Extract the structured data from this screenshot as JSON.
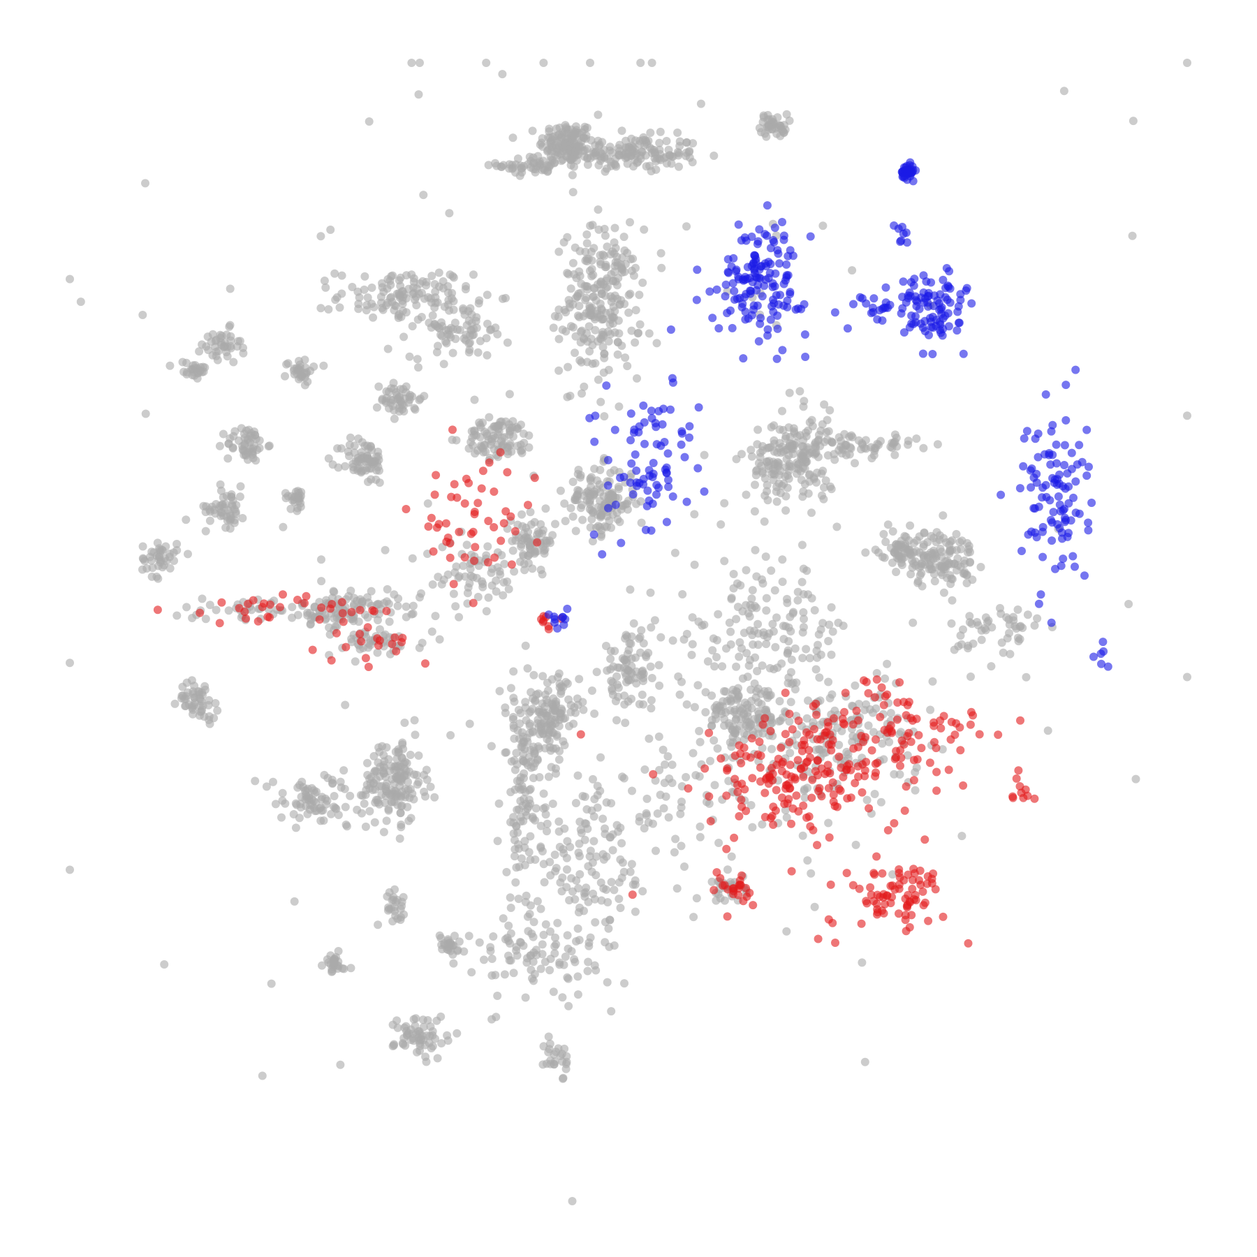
{
  "chart_data": {
    "type": "scatter",
    "title": "",
    "xlabel": "",
    "ylabel": "",
    "axes_visible": false,
    "grid": false,
    "legend": "none",
    "xlim": [
      0,
      100
    ],
    "ylim": [
      0,
      100
    ],
    "colors": {
      "background": "#gray",
      "gray": "#aaaaaa",
      "red": "#e31a1c",
      "blue": "#1a1ae6"
    },
    "point_opacity": 0.6,
    "clusters": [
      {
        "color": "gray",
        "n": 120,
        "x": 44.5,
        "y": 93.0,
        "sx": 1.2,
        "sy": 0.9
      },
      {
        "color": "gray",
        "n": 150,
        "x": 50.0,
        "y": 92.0,
        "sx": 3.2,
        "sy": 0.8
      },
      {
        "color": "gray",
        "n": 50,
        "x": 41.5,
        "y": 91.0,
        "sx": 1.6,
        "sy": 0.4
      },
      {
        "color": "gray",
        "n": 40,
        "x": 63.0,
        "y": 94.5,
        "sx": 0.6,
        "sy": 0.5
      },
      {
        "color": "gray",
        "n": 230,
        "x": 47.5,
        "y": 79.0,
        "sx": 1.8,
        "sy": 3.2
      },
      {
        "color": "gray",
        "n": 120,
        "x": 30.0,
        "y": 79.5,
        "sx": 3.0,
        "sy": 1.2
      },
      {
        "color": "gray",
        "n": 70,
        "x": 35.0,
        "y": 76.5,
        "sx": 2.2,
        "sy": 1.2
      },
      {
        "color": "gray",
        "n": 40,
        "x": 13.5,
        "y": 75.0,
        "sx": 0.9,
        "sy": 0.8
      },
      {
        "color": "gray",
        "n": 25,
        "x": 11.0,
        "y": 73.0,
        "sx": 0.8,
        "sy": 0.4
      },
      {
        "color": "gray",
        "n": 30,
        "x": 20.5,
        "y": 73.0,
        "sx": 0.6,
        "sy": 0.5
      },
      {
        "color": "gray",
        "n": 50,
        "x": 29.7,
        "y": 70.5,
        "sx": 0.9,
        "sy": 0.8
      },
      {
        "color": "gray",
        "n": 50,
        "x": 15.8,
        "y": 66.5,
        "sx": 0.9,
        "sy": 0.8
      },
      {
        "color": "gray",
        "n": 70,
        "x": 26.3,
        "y": 65.0,
        "sx": 1.0,
        "sy": 1.0
      },
      {
        "color": "gray",
        "n": 90,
        "x": 38.5,
        "y": 67.0,
        "sx": 1.6,
        "sy": 0.9
      },
      {
        "color": "gray",
        "n": 50,
        "x": 14.0,
        "y": 61.0,
        "sx": 0.9,
        "sy": 0.9
      },
      {
        "color": "gray",
        "n": 25,
        "x": 20.2,
        "y": 61.8,
        "sx": 0.5,
        "sy": 0.5
      },
      {
        "color": "gray",
        "n": 40,
        "x": 8.0,
        "y": 56.5,
        "sx": 0.8,
        "sy": 0.8
      },
      {
        "color": "gray",
        "n": 70,
        "x": 41.5,
        "y": 58.0,
        "sx": 1.0,
        "sy": 1.1
      },
      {
        "color": "gray",
        "n": 130,
        "x": 47.5,
        "y": 61.5,
        "sx": 1.6,
        "sy": 1.5
      },
      {
        "color": "gray",
        "n": 170,
        "x": 64.5,
        "y": 65.0,
        "sx": 2.0,
        "sy": 2.0
      },
      {
        "color": "gray",
        "n": 70,
        "x": 70.0,
        "y": 66.5,
        "sx": 3.0,
        "sy": 0.5
      },
      {
        "color": "gray",
        "n": 60,
        "x": 74.5,
        "y": 57.2,
        "sx": 1.1,
        "sy": 0.9
      },
      {
        "color": "gray",
        "n": 110,
        "x": 78.0,
        "y": 56.5,
        "sx": 1.6,
        "sy": 1.3
      },
      {
        "color": "gray",
        "n": 50,
        "x": 83.0,
        "y": 50.0,
        "sx": 2.0,
        "sy": 1.5
      },
      {
        "color": "gray",
        "n": 100,
        "x": 25.0,
        "y": 52.0,
        "sx": 2.2,
        "sy": 0.9
      },
      {
        "color": "gray",
        "n": 40,
        "x": 17.0,
        "y": 52.0,
        "sx": 4.0,
        "sy": 0.5
      },
      {
        "color": "gray",
        "n": 40,
        "x": 27.0,
        "y": 49.0,
        "sx": 2.2,
        "sy": 0.6
      },
      {
        "color": "gray",
        "n": 60,
        "x": 36.0,
        "y": 55.0,
        "sx": 2.2,
        "sy": 1.6
      },
      {
        "color": "gray",
        "n": 50,
        "x": 11.5,
        "y": 44.0,
        "sx": 0.9,
        "sy": 0.8
      },
      {
        "color": "gray",
        "n": 150,
        "x": 29.0,
        "y": 37.0,
        "sx": 1.4,
        "sy": 1.8
      },
      {
        "color": "gray",
        "n": 80,
        "x": 22.0,
        "y": 35.0,
        "sx": 2.5,
        "sy": 1.2
      },
      {
        "color": "gray",
        "n": 130,
        "x": 43.0,
        "y": 42.5,
        "sx": 1.3,
        "sy": 1.8
      },
      {
        "color": "gray",
        "n": 120,
        "x": 40.5,
        "y": 36.0,
        "sx": 1.0,
        "sy": 5.0
      },
      {
        "color": "gray",
        "n": 130,
        "x": 47.0,
        "y": 30.0,
        "sx": 3.0,
        "sy": 3.5
      },
      {
        "color": "gray",
        "n": 80,
        "x": 50.0,
        "y": 46.5,
        "sx": 1.3,
        "sy": 1.6
      },
      {
        "color": "gray",
        "n": 120,
        "x": 60.0,
        "y": 42.5,
        "sx": 1.8,
        "sy": 1.2
      },
      {
        "color": "gray",
        "n": 150,
        "x": 62.0,
        "y": 50.0,
        "sx": 4.0,
        "sy": 3.0
      },
      {
        "color": "gray",
        "n": 150,
        "x": 69.0,
        "y": 41.0,
        "sx": 3.5,
        "sy": 2.5
      },
      {
        "color": "gray",
        "n": 90,
        "x": 58.0,
        "y": 36.0,
        "sx": 6.0,
        "sy": 3.5
      },
      {
        "color": "gray",
        "n": 25,
        "x": 29.0,
        "y": 26.0,
        "sx": 0.6,
        "sy": 0.7
      },
      {
        "color": "gray",
        "n": 25,
        "x": 23.5,
        "y": 21.0,
        "sx": 0.5,
        "sy": 0.5
      },
      {
        "color": "gray",
        "n": 25,
        "x": 34.0,
        "y": 22.5,
        "sx": 0.5,
        "sy": 0.5
      },
      {
        "color": "gray",
        "n": 60,
        "x": 31.5,
        "y": 14.5,
        "sx": 1.2,
        "sy": 1.0
      },
      {
        "color": "gray",
        "n": 90,
        "x": 42.0,
        "y": 21.5,
        "sx": 3.0,
        "sy": 2.0
      },
      {
        "color": "gray",
        "n": 25,
        "x": 43.5,
        "y": 12.5,
        "sx": 0.5,
        "sy": 1.0
      },
      {
        "color": "gray",
        "n": 30,
        "x": 59.0,
        "y": 27.5,
        "sx": 0.8,
        "sy": 0.6
      },
      {
        "color": "gray",
        "n": 130,
        "x": 50.0,
        "y": 60.0,
        "sx": 25.0,
        "sy": 25.0
      },
      {
        "color": "red",
        "n": 50,
        "x": 36.0,
        "y": 59.5,
        "sx": 2.8,
        "sy": 3.0
      },
      {
        "color": "red",
        "n": 30,
        "x": 18.0,
        "y": 52.0,
        "sx": 4.5,
        "sy": 0.6
      },
      {
        "color": "red",
        "n": 20,
        "x": 27.5,
        "y": 49.0,
        "sx": 2.5,
        "sy": 1.2
      },
      {
        "color": "red",
        "n": 8,
        "x": 42.5,
        "y": 51.0,
        "sx": 0.5,
        "sy": 0.3
      },
      {
        "color": "red",
        "n": 120,
        "x": 64.5,
        "y": 37.0,
        "sx": 4.0,
        "sy": 2.0
      },
      {
        "color": "red",
        "n": 110,
        "x": 73.0,
        "y": 41.0,
        "sx": 5.0,
        "sy": 2.5
      },
      {
        "color": "red",
        "n": 70,
        "x": 74.0,
        "y": 27.0,
        "sx": 2.2,
        "sy": 1.3
      },
      {
        "color": "red",
        "n": 20,
        "x": 59.5,
        "y": 27.5,
        "sx": 0.7,
        "sy": 0.6
      },
      {
        "color": "red",
        "n": 10,
        "x": 85.0,
        "y": 36.0,
        "sx": 0.7,
        "sy": 0.6
      },
      {
        "color": "red",
        "n": 40,
        "x": 66.0,
        "y": 33.0,
        "sx": 8.0,
        "sy": 5.0
      },
      {
        "color": "blue",
        "n": 40,
        "x": 75.0,
        "y": 90.5,
        "sx": 0.3,
        "sy": 0.3
      },
      {
        "color": "blue",
        "n": 140,
        "x": 62.0,
        "y": 81.0,
        "sx": 2.0,
        "sy": 2.5
      },
      {
        "color": "blue",
        "n": 90,
        "x": 77.0,
        "y": 78.5,
        "sx": 1.5,
        "sy": 1.5
      },
      {
        "color": "blue",
        "n": 20,
        "x": 71.5,
        "y": 78.5,
        "sx": 1.8,
        "sy": 1.0
      },
      {
        "color": "blue",
        "n": 80,
        "x": 52.0,
        "y": 65.0,
        "sx": 2.5,
        "sy": 3.5
      },
      {
        "color": "blue",
        "n": 100,
        "x": 88.0,
        "y": 62.0,
        "sx": 1.5,
        "sy": 4.0
      },
      {
        "color": "blue",
        "n": 10,
        "x": 43.5,
        "y": 51.0,
        "sx": 0.6,
        "sy": 0.4
      },
      {
        "color": "blue",
        "n": 6,
        "x": 92.5,
        "y": 48.0,
        "sx": 0.3,
        "sy": 0.8
      },
      {
        "color": "blue",
        "n": 8,
        "x": 74.5,
        "y": 85.0,
        "sx": 0.5,
        "sy": 0.8
      }
    ]
  }
}
